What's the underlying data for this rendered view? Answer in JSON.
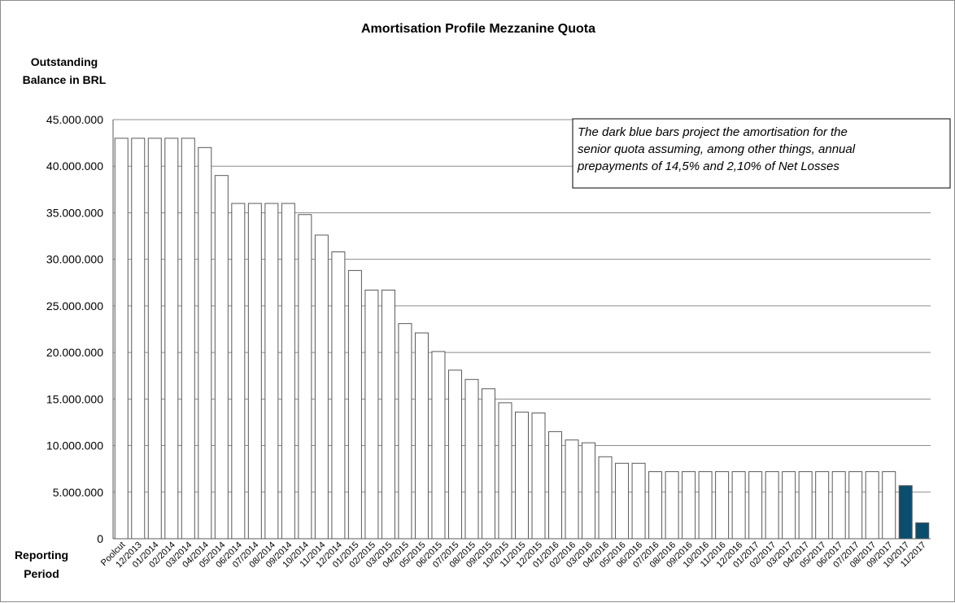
{
  "chart_data": {
    "type": "bar",
    "title": "Amortisation Profile Mezzanine Quota",
    "ylabel_lines": [
      "Outstanding",
      "Balance in BRL"
    ],
    "xlabel_lines": [
      "Reporting",
      "Period"
    ],
    "ylim": [
      0,
      45000000
    ],
    "ytick_values": [
      0,
      5000000,
      10000000,
      15000000,
      20000000,
      25000000,
      30000000,
      35000000,
      40000000,
      45000000
    ],
    "ytick_labels": [
      "0",
      "5.000.000",
      "10.000.000",
      "15.000.000",
      "20.000.000",
      "25.000.000",
      "30.000.000",
      "35.000.000",
      "40.000.000",
      "45.000.000"
    ],
    "grid": true,
    "categories": [
      "Poolcut",
      "12/2013",
      "01/2014",
      "02/2014",
      "03/2014",
      "04/2014",
      "05/2014",
      "06/2014",
      "07/2014",
      "08/2014",
      "09/2014",
      "10/2014",
      "11/2014",
      "12/2014",
      "01/2015",
      "02/2015",
      "03/2015",
      "04/2015",
      "05/2015",
      "06/2015",
      "07/2015",
      "08/2015",
      "09/2015",
      "10/2015",
      "11/2015",
      "12/2015",
      "01/2016",
      "02/2016",
      "03/2016",
      "04/2016",
      "05/2016",
      "06/2016",
      "07/2016",
      "08/2016",
      "09/2016",
      "10/2016",
      "11/2016",
      "12/2016",
      "01/2017",
      "02/2017",
      "03/2017",
      "04/2017",
      "05/2017",
      "06/2017",
      "07/2017",
      "08/2017",
      "09/2017",
      "10/2017",
      "11/2017"
    ],
    "values": [
      43000000,
      43000000,
      43000000,
      43000000,
      43000000,
      42000000,
      39000000,
      36000000,
      36000000,
      36000000,
      36000000,
      34800000,
      32600000,
      30800000,
      28800000,
      26700000,
      26700000,
      23100000,
      22100000,
      20100000,
      18100000,
      17100000,
      16100000,
      14600000,
      13600000,
      13500000,
      11500000,
      10600000,
      10300000,
      8800000,
      8100000,
      8100000,
      7200000,
      7200000,
      7200000,
      7200000,
      7200000,
      7200000,
      7200000,
      7200000,
      7200000,
      7200000,
      7200000,
      7200000,
      7200000,
      7200000,
      7200000,
      5700000,
      1700000
    ],
    "projected_count": 2,
    "colors": {
      "actual_fill": "#ffffff",
      "actual_stroke": "#595959",
      "projected_fill": "#0b4d6e",
      "projected_stroke": "#595959",
      "grid": "#8c8c8c"
    },
    "annotation_lines": [
      "The dark blue bars project the amortisation for the",
      "senior quota assuming, among other things, annual",
      "prepayments of 14,5% and 2,10% of Net Losses"
    ]
  }
}
